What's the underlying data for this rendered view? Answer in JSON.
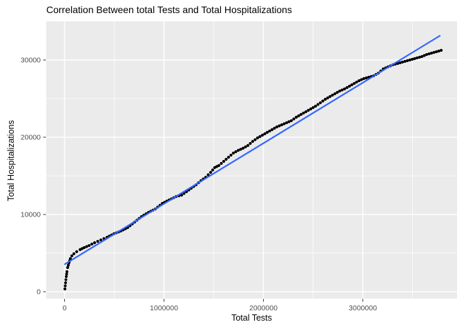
{
  "title": "Correlation Between total Tests and Total Hospitalizations",
  "chart_data": {
    "type": "scatter",
    "title": "Correlation Between total Tests and Total Hospitalizations",
    "xlabel": "Total Tests",
    "ylabel": "Total Hospitalizations",
    "xlim": [
      -184000,
      3948000
    ],
    "ylim": [
      -890,
      35000
    ],
    "x_ticks": {
      "values": [
        0,
        1000000,
        2000000,
        3000000
      ],
      "labels": [
        "0",
        "1000000",
        "2000000",
        "3000000"
      ]
    },
    "y_ticks": {
      "values": [
        0,
        10000,
        20000,
        30000
      ],
      "labels": [
        "0",
        "10000",
        "20000",
        "30000"
      ]
    },
    "x_minor_gridlines": [
      500000,
      1500000,
      2500000,
      3500000
    ],
    "y_minor_gridlines": [
      5000,
      15000,
      25000
    ],
    "grid": "white major and minor gridlines on gray panel",
    "legend": "none",
    "series": [
      {
        "name": "observations",
        "type": "points",
        "color": "#000000",
        "points": [
          [
            3500,
            360
          ],
          [
            10000,
            1160
          ],
          [
            17000,
            1960
          ],
          [
            24000,
            2590
          ],
          [
            31000,
            3130
          ],
          [
            45000,
            3750
          ],
          [
            59000,
            4290
          ],
          [
            73000,
            4640
          ],
          [
            94000,
            4910
          ],
          [
            122000,
            5180
          ],
          [
            156000,
            5450
          ],
          [
            198000,
            5710
          ],
          [
            247000,
            5980
          ],
          [
            302000,
            6340
          ],
          [
            365000,
            6700
          ],
          [
            427000,
            7050
          ],
          [
            497000,
            7500
          ],
          [
            566000,
            7860
          ],
          [
            635000,
            8300
          ],
          [
            705000,
            9020
          ],
          [
            774000,
            9730
          ],
          [
            844000,
            10270
          ],
          [
            913000,
            10710
          ],
          [
            983000,
            11430
          ],
          [
            1052000,
            11880
          ],
          [
            1122000,
            12320
          ],
          [
            1177000,
            12500
          ],
          [
            1226000,
            12950
          ],
          [
            1274000,
            13390
          ],
          [
            1323000,
            13840
          ],
          [
            1372000,
            14380
          ],
          [
            1420000,
            14820
          ],
          [
            1469000,
            15450
          ],
          [
            1510000,
            16070
          ],
          [
            1552000,
            16340
          ],
          [
            1601000,
            16880
          ],
          [
            1649000,
            17410
          ],
          [
            1698000,
            17950
          ],
          [
            1747000,
            18300
          ],
          [
            1795000,
            18570
          ],
          [
            1844000,
            18930
          ],
          [
            1892000,
            19460
          ],
          [
            1941000,
            19910
          ],
          [
            1990000,
            20270
          ],
          [
            2038000,
            20630
          ],
          [
            2087000,
            20980
          ],
          [
            2135000,
            21340
          ],
          [
            2184000,
            21610
          ],
          [
            2233000,
            21880
          ],
          [
            2281000,
            22140
          ],
          [
            2330000,
            22590
          ],
          [
            2378000,
            22950
          ],
          [
            2427000,
            23300
          ],
          [
            2476000,
            23660
          ],
          [
            2524000,
            24020
          ],
          [
            2573000,
            24460
          ],
          [
            2622000,
            24910
          ],
          [
            2670000,
            25270
          ],
          [
            2719000,
            25630
          ],
          [
            2767000,
            25980
          ],
          [
            2816000,
            26250
          ],
          [
            2865000,
            26610
          ],
          [
            2913000,
            26960
          ],
          [
            2962000,
            27320
          ],
          [
            3010000,
            27590
          ],
          [
            3059000,
            27770
          ],
          [
            3108000,
            27950
          ],
          [
            3156000,
            28300
          ],
          [
            3205000,
            28840
          ],
          [
            3253000,
            29110
          ],
          [
            3302000,
            29380
          ],
          [
            3351000,
            29550
          ],
          [
            3399000,
            29730
          ],
          [
            3448000,
            29910
          ],
          [
            3497000,
            30090
          ],
          [
            3545000,
            30270
          ],
          [
            3594000,
            30450
          ],
          [
            3642000,
            30710
          ],
          [
            3691000,
            30890
          ],
          [
            3740000,
            31070
          ],
          [
            3788000,
            31250
          ]
        ]
      },
      {
        "name": "linear-fit",
        "type": "line",
        "color": "#3366FF",
        "points": [
          [
            3500,
            3570
          ],
          [
            3774000,
            33130
          ]
        ]
      }
    ],
    "colors": {
      "panel_background": "#EBEBEB",
      "gridline": "#FFFFFF",
      "points": "#000000",
      "trend_line": "#3366FF",
      "tick_text": "#4D4D4D",
      "tick_mark": "#333333",
      "title_text": "#000000"
    }
  }
}
